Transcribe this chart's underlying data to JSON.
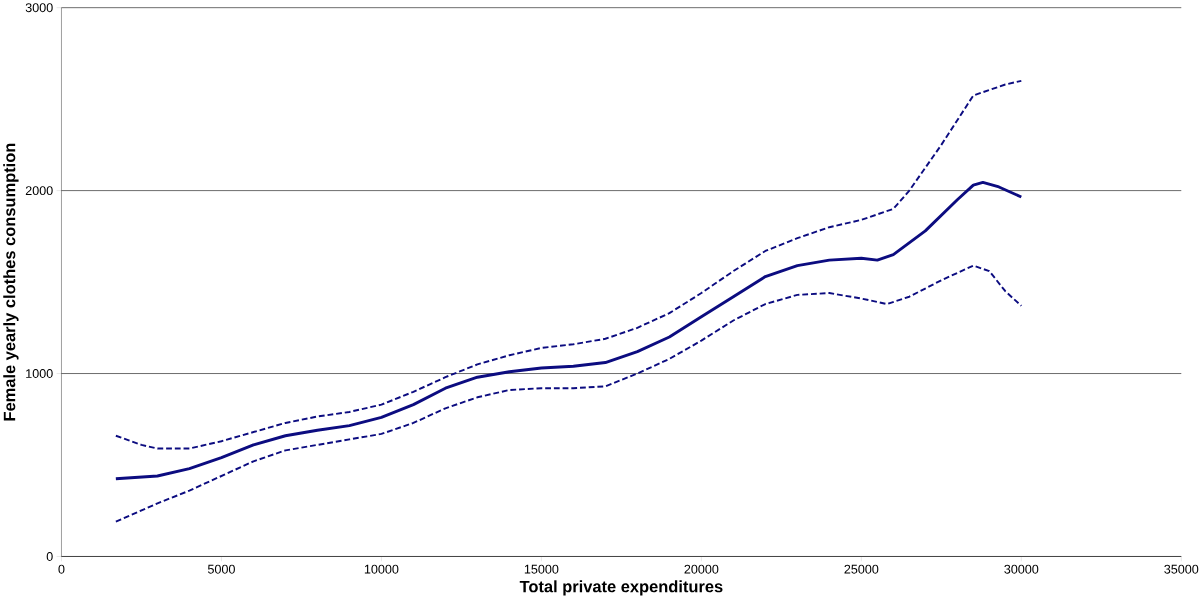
{
  "chart_data": {
    "type": "line",
    "xlabel": "Total private expenditures",
    "ylabel": "Female yearly clothes consumption",
    "xlim": [
      0,
      35000
    ],
    "xticks": [
      0,
      5000,
      10000,
      15000,
      20000,
      25000,
      30000,
      35000
    ],
    "ylim": [
      0,
      3000
    ],
    "yticks": [
      0,
      1000,
      2000,
      3000
    ],
    "grid": "y",
    "marker": "none",
    "series": [
      {
        "color": "#0c0c80",
        "line_style": "solid",
        "x": [
          1700,
          3000,
          4000,
          5000,
          6000,
          7000,
          8000,
          9000,
          10000,
          11000,
          12000,
          13000,
          14000,
          15000,
          16000,
          17000,
          18000,
          19000,
          20000,
          21000,
          22000,
          23000,
          24000,
          25000,
          25500,
          26000,
          27000,
          28000,
          28500,
          28800,
          29300,
          30000
        ],
        "values": [
          425,
          440,
          480,
          540,
          610,
          660,
          690,
          715,
          760,
          830,
          920,
          980,
          1010,
          1030,
          1040,
          1060,
          1120,
          1200,
          1310,
          1420,
          1530,
          1590,
          1620,
          1630,
          1620,
          1650,
          1780,
          1950,
          2030,
          2045,
          2020,
          1965
        ]
      },
      {
        "color": "#0c0c80",
        "line_style": "dashed",
        "x": [
          1700,
          2500,
          3000,
          4000,
          5000,
          6000,
          7000,
          8000,
          9000,
          10000,
          11000,
          12000,
          13000,
          14000,
          15000,
          16000,
          17000,
          18000,
          19000,
          20000,
          21000,
          22000,
          23000,
          24000,
          25000,
          26000,
          26500,
          27500,
          28500,
          29500,
          30000
        ],
        "values": [
          660,
          610,
          590,
          590,
          630,
          680,
          730,
          765,
          790,
          830,
          900,
          980,
          1050,
          1100,
          1140,
          1160,
          1190,
          1250,
          1330,
          1440,
          1560,
          1670,
          1740,
          1800,
          1840,
          1900,
          2000,
          2250,
          2520,
          2580,
          2600
        ]
      },
      {
        "color": "#0c0c80",
        "line_style": "dashed",
        "x": [
          1700,
          3000,
          4000,
          5000,
          6000,
          7000,
          8000,
          9000,
          10000,
          11000,
          12000,
          13000,
          14000,
          15000,
          16000,
          17000,
          18000,
          19000,
          20000,
          21000,
          22000,
          23000,
          24000,
          25000,
          25800,
          26500,
          27500,
          28500,
          29000,
          29500,
          30000
        ],
        "values": [
          190,
          290,
          360,
          440,
          520,
          580,
          610,
          640,
          670,
          730,
          810,
          870,
          910,
          920,
          920,
          930,
          1000,
          1080,
          1180,
          1290,
          1380,
          1430,
          1440,
          1410,
          1380,
          1420,
          1510,
          1590,
          1560,
          1450,
          1370
        ]
      }
    ]
  }
}
